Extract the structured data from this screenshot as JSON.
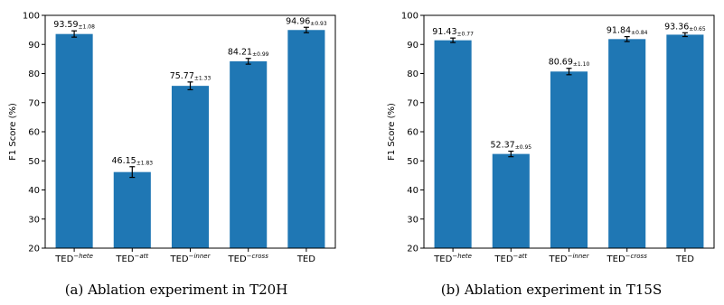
{
  "chart_data": [
    {
      "type": "bar",
      "ylabel": "F1 Score (%)",
      "ylim": [
        20,
        100
      ],
      "yticks": [
        20,
        30,
        40,
        50,
        60,
        70,
        80,
        90,
        100
      ],
      "categories": [
        {
          "base": "TED",
          "sup": "−hete"
        },
        {
          "base": "TED",
          "sup": "−att"
        },
        {
          "base": "TED",
          "sup": "−inner"
        },
        {
          "base": "TED",
          "sup": "−cross"
        },
        {
          "base": "TED",
          "sup": ""
        }
      ],
      "values": [
        93.59,
        46.15,
        75.77,
        84.21,
        94.96
      ],
      "errors": [
        1.08,
        1.83,
        1.33,
        0.99,
        0.93
      ],
      "value_labels": [
        "93.59",
        "46.15",
        "75.77",
        "84.21",
        "94.96"
      ],
      "error_labels": [
        "±1.08",
        "±1.83",
        "±1.33",
        "±0.99",
        "±0.93"
      ],
      "bar_color": "#1f77b4",
      "caption": "(a)  Ablation experiment in T20H"
    },
    {
      "type": "bar",
      "ylabel": "F1 Score (%)",
      "ylim": [
        20,
        100
      ],
      "yticks": [
        20,
        30,
        40,
        50,
        60,
        70,
        80,
        90,
        100
      ],
      "categories": [
        {
          "base": "TED",
          "sup": "−hete"
        },
        {
          "base": "TED",
          "sup": "−att"
        },
        {
          "base": "TED",
          "sup": "−inner"
        },
        {
          "base": "TED",
          "sup": "−cross"
        },
        {
          "base": "TED",
          "sup": ""
        }
      ],
      "values": [
        91.43,
        52.37,
        80.69,
        91.84,
        93.36
      ],
      "errors": [
        0.77,
        0.95,
        1.1,
        0.84,
        0.65
      ],
      "value_labels": [
        "91.43",
        "52.37",
        "80.69",
        "91.84",
        "93.36"
      ],
      "error_labels": [
        "±0.77",
        "±0.95",
        "±1.10",
        "±0.84",
        "±0.65"
      ],
      "bar_color": "#1f77b4",
      "caption": "(b)  Ablation experiment in T15S"
    }
  ]
}
